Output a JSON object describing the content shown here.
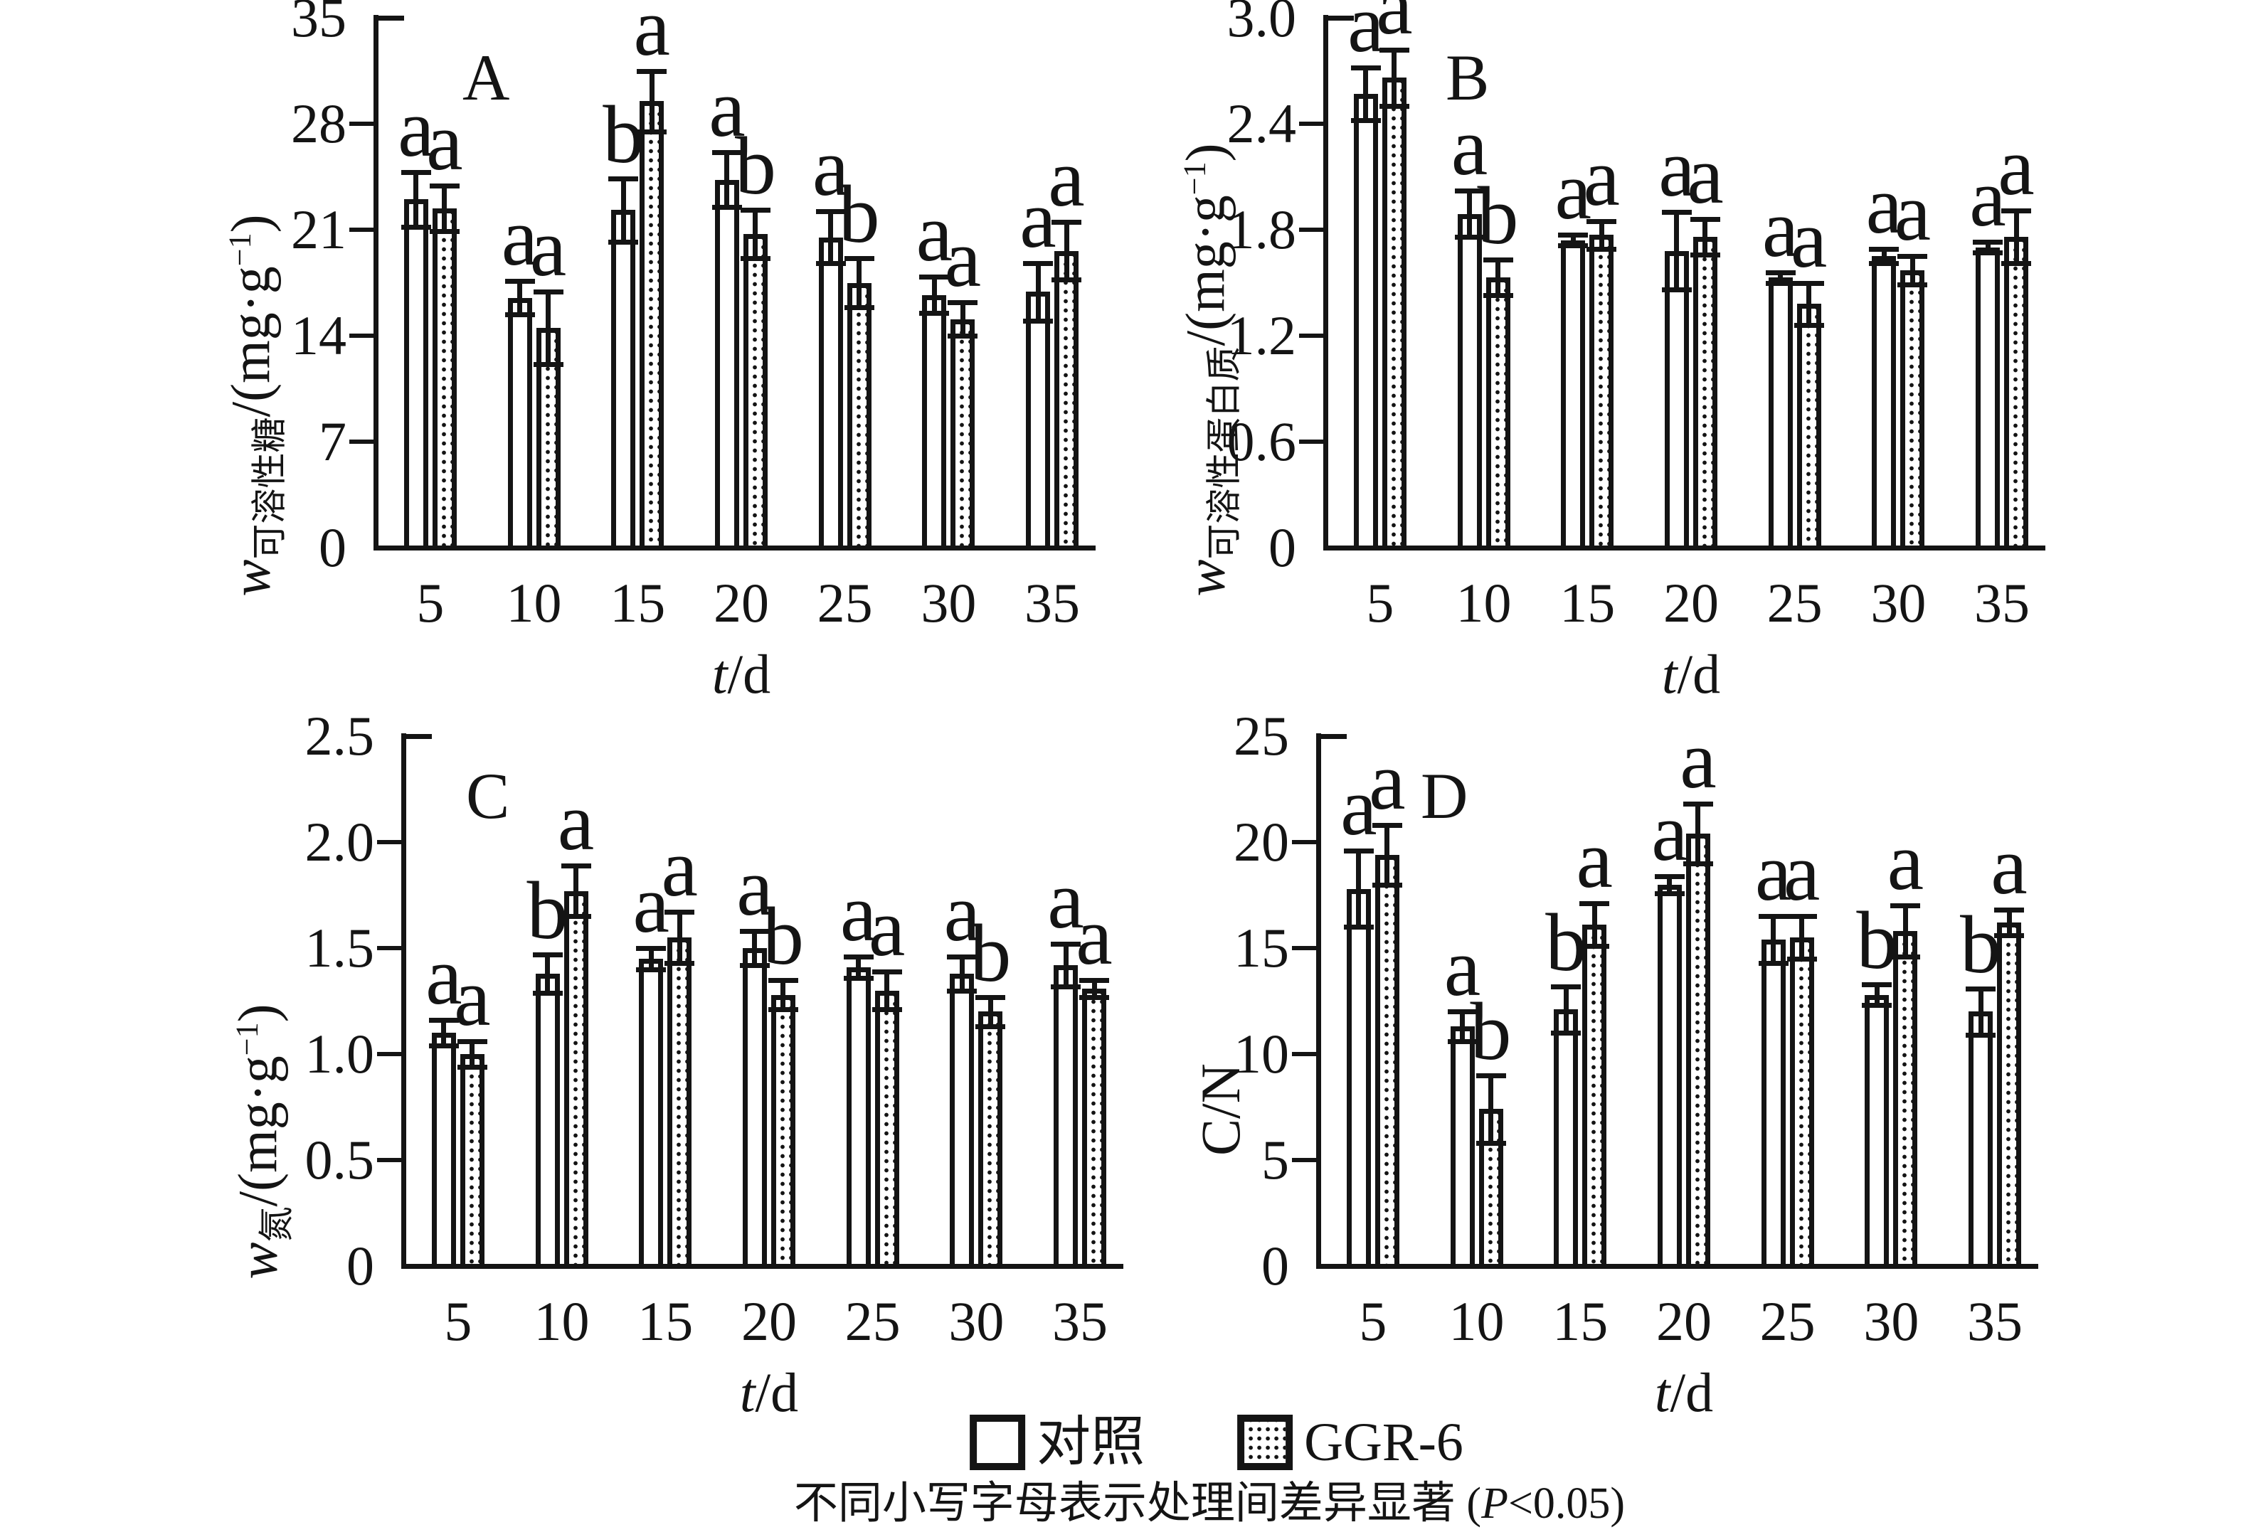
{
  "figure": {
    "legend": {
      "items": [
        {
          "label": "对照",
          "pattern": "plain"
        },
        {
          "label": "GGR-6",
          "pattern": "dotted"
        }
      ]
    },
    "caption": {
      "pre": "不同小写字母表示处理间差异显著 (",
      "italic": "P",
      "post": "<0.05)"
    },
    "xlabel": {
      "italic": "t",
      "rest": "/d"
    }
  },
  "chart_data": [
    {
      "panel": "A",
      "type": "bar",
      "ylabel": {
        "pre": "w",
        "sub": "可溶性糖",
        "unit": "/(mg·g",
        "sup": "−1",
        "close": ")"
      },
      "ylim": [
        0,
        35
      ],
      "yticks": [
        "0",
        "7",
        "14",
        "21",
        "28",
        "35"
      ],
      "categories": [
        "5",
        "10",
        "15",
        "20",
        "25",
        "30",
        "35"
      ],
      "series": [
        {
          "name": "对照",
          "values": [
            23.0,
            16.5,
            22.3,
            24.3,
            20.5,
            16.7,
            16.9
          ],
          "errors": [
            1.8,
            1.1,
            2.1,
            1.8,
            1.7,
            1.2,
            1.9
          ],
          "letters": [
            "a",
            "a",
            "b",
            "a",
            "a",
            "a",
            "a"
          ]
        },
        {
          "name": "GGR-6",
          "values": [
            22.4,
            14.5,
            29.5,
            20.7,
            17.5,
            15.1,
            19.6
          ],
          "errors": [
            1.5,
            2.4,
            2.0,
            1.6,
            1.6,
            1.1,
            1.9
          ],
          "letters": [
            "a",
            "a",
            "a",
            "b",
            "b",
            "a",
            "a"
          ]
        }
      ]
    },
    {
      "panel": "B",
      "type": "bar",
      "ylabel": {
        "pre": "w",
        "sub": "可溶性蛋白质",
        "unit": "/(mg·g",
        "sup": "−1",
        "close": ")"
      },
      "ylim": [
        0,
        3.0
      ],
      "yticks": [
        "0",
        "0.6",
        "1.2",
        "1.8",
        "2.4",
        "3.0"
      ],
      "categories": [
        "5",
        "10",
        "15",
        "20",
        "25",
        "30",
        "35"
      ],
      "series": [
        {
          "name": "对照",
          "values": [
            2.57,
            1.89,
            1.74,
            1.68,
            1.53,
            1.65,
            1.7
          ],
          "errors": [
            0.15,
            0.13,
            0.03,
            0.22,
            0.03,
            0.04,
            0.03
          ],
          "letters": [
            "a",
            "a",
            "a",
            "a",
            "a",
            "a",
            "a"
          ]
        },
        {
          "name": "GGR-6",
          "values": [
            2.66,
            1.53,
            1.77,
            1.76,
            1.38,
            1.57,
            1.76
          ],
          "errors": [
            0.16,
            0.1,
            0.08,
            0.1,
            0.12,
            0.08,
            0.15
          ],
          "letters": [
            "a",
            "b",
            "a",
            "a",
            "a",
            "a",
            "a"
          ]
        }
      ]
    },
    {
      "panel": "C",
      "type": "bar",
      "ylabel": {
        "pre": "w",
        "sub": "氮",
        "unit": "/(mg·g",
        "sup": "−1",
        "close": ")"
      },
      "ylim": [
        0,
        2.5
      ],
      "yticks": [
        "0",
        "0.5",
        "1.0",
        "1.5",
        "2.0",
        "2.5"
      ],
      "categories": [
        "5",
        "10",
        "15",
        "20",
        "25",
        "30",
        "35"
      ],
      "series": [
        {
          "name": "对照",
          "values": [
            1.1,
            1.38,
            1.45,
            1.5,
            1.41,
            1.38,
            1.42
          ],
          "errors": [
            0.06,
            0.09,
            0.05,
            0.08,
            0.05,
            0.08,
            0.1
          ],
          "letters": [
            "a",
            "b",
            "a",
            "a",
            "a",
            "a",
            "a"
          ]
        },
        {
          "name": "GGR-6",
          "values": [
            1.0,
            1.77,
            1.55,
            1.28,
            1.3,
            1.2,
            1.31
          ],
          "errors": [
            0.06,
            0.12,
            0.12,
            0.07,
            0.09,
            0.07,
            0.04
          ],
          "letters": [
            "a",
            "a",
            "a",
            "b",
            "a",
            "b",
            "a"
          ]
        }
      ]
    },
    {
      "panel": "D",
      "type": "bar",
      "ylabel": {
        "pre": "",
        "sub": "",
        "unit": "C/N",
        "sup": "",
        "close": ""
      },
      "ylim": [
        0,
        25
      ],
      "yticks": [
        "0",
        "5",
        "10",
        "15",
        "20",
        "25"
      ],
      "categories": [
        "5",
        "10",
        "15",
        "20",
        "25",
        "30",
        "35"
      ],
      "series": [
        {
          "name": "对照",
          "values": [
            17.8,
            11.3,
            12.1,
            18.0,
            15.4,
            12.8,
            12.0
          ],
          "errors": [
            1.8,
            0.7,
            1.1,
            0.4,
            1.1,
            0.5,
            1.1
          ],
          "letters": [
            "a",
            "a",
            "b",
            "a",
            "a",
            "b",
            "b"
          ]
        },
        {
          "name": "GGR-6",
          "values": [
            19.4,
            7.4,
            16.1,
            20.4,
            15.5,
            15.8,
            16.2
          ],
          "errors": [
            1.4,
            1.6,
            1.0,
            1.4,
            1.0,
            1.2,
            0.6
          ],
          "letters": [
            "a",
            "b",
            "a",
            "a",
            "a",
            "a",
            "a"
          ]
        }
      ]
    }
  ]
}
